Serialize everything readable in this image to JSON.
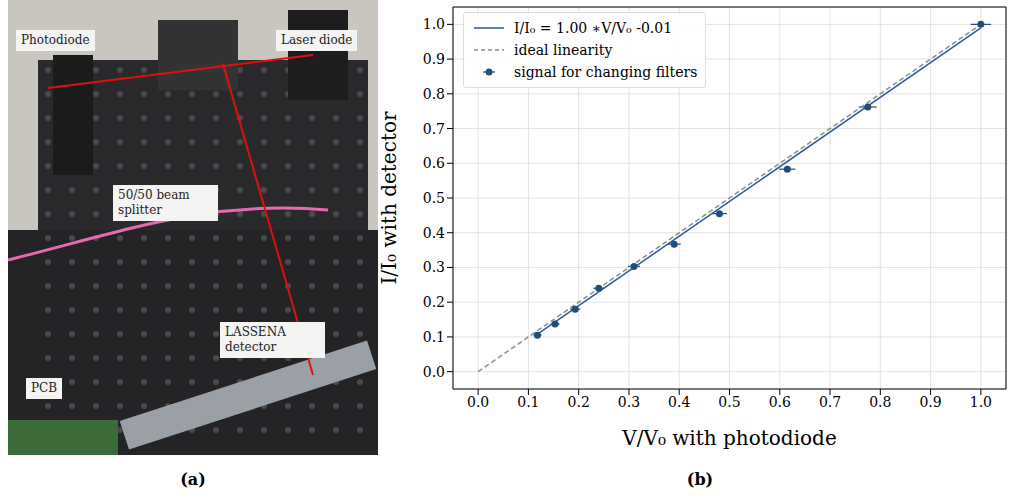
{
  "photo": {
    "panel_label": "(a)",
    "labels": [
      "Photodiode",
      "Laser diode",
      "50/50 beam splitter",
      "LASSENA detector",
      "PCB"
    ]
  },
  "chart_data": {
    "panel_label": "(b)",
    "type": "scatter",
    "xlabel": "V/V₀ with photodiode",
    "ylabel": "I/I₀ with detector",
    "xlim": [
      -0.05,
      1.05
    ],
    "ylim": [
      -0.05,
      1.05
    ],
    "xticks": [
      {
        "value": 0,
        "label": "0.0"
      },
      0.1,
      0.2,
      0.3,
      0.4,
      0.5,
      0.6,
      0.7,
      0.8,
      0.9,
      {
        "value": 1,
        "label": "1.0"
      }
    ],
    "yticks": [
      {
        "value": 0,
        "label": "0.0"
      },
      0.1,
      0.2,
      0.3,
      0.4,
      0.5,
      0.6,
      0.7,
      0.8,
      0.9,
      {
        "value": 1,
        "label": "1.0"
      }
    ],
    "grid": true,
    "legend": "upper left",
    "series": [
      {
        "name": "I/I₀ = 1.00 ∗V/V₀ -0.01",
        "type": "line",
        "line_style": "solid",
        "color": "#2c5a9c",
        "x": [
          0.118,
          1.0
        ],
        "values": [
          0.108,
          0.99
        ]
      },
      {
        "name": "ideal linearity",
        "type": "line",
        "line_style": "dashed",
        "color": "#8c8c8c",
        "x": [
          0,
          1.0
        ],
        "values": [
          0,
          1.0
        ]
      },
      {
        "name": "signal for changing filters",
        "type": "scatter",
        "marker": "o",
        "color": "#1f4e79",
        "x": [
          0.118,
          0.153,
          0.193,
          0.24,
          0.31,
          0.39,
          0.48,
          0.615,
          0.775,
          1.0
        ],
        "values": [
          0.105,
          0.137,
          0.18,
          0.24,
          0.303,
          0.367,
          0.455,
          0.583,
          0.762,
          1.0
        ],
        "x_error": [
          0.008,
          0.009,
          0.01,
          0.011,
          0.012,
          0.013,
          0.015,
          0.016,
          0.018,
          0.02
        ]
      }
    ]
  }
}
